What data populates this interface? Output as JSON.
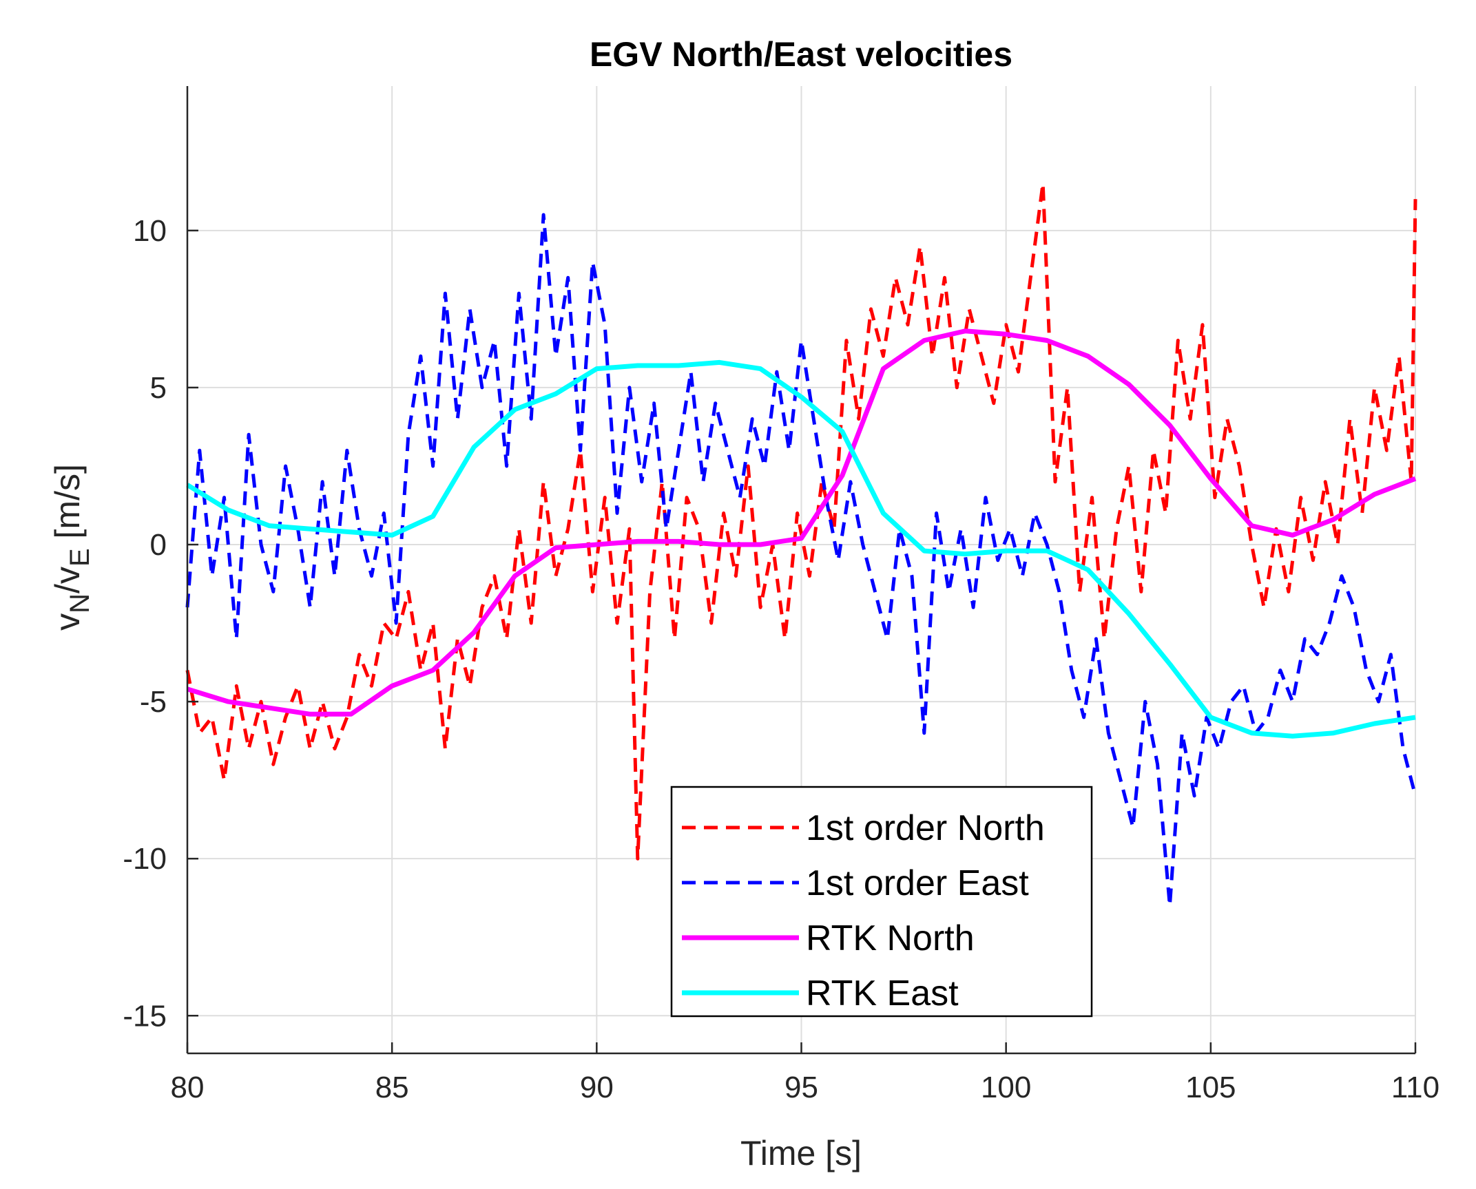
{
  "chart_data": {
    "type": "line",
    "title": "EGV North/East velocities",
    "xlabel": "Time [s]",
    "ylabel_parts": {
      "v": "v",
      "n_sub": "N",
      "slash": "/",
      "e_sub": "E",
      "unit": " [m/s]"
    },
    "xlim": [
      80,
      110
    ],
    "ylim": [
      -16.2,
      14.6
    ],
    "x_ticks": [
      80,
      85,
      90,
      95,
      100,
      105,
      110
    ],
    "x_tick_labels": [
      "80",
      "85",
      "90",
      "95",
      "100",
      "105",
      "110"
    ],
    "y_ticks": [
      -15,
      -10,
      -5,
      0,
      5,
      10
    ],
    "y_tick_labels": [
      "-15",
      "-10",
      "-5",
      "0",
      "5",
      "10"
    ],
    "grid": true,
    "legend_position": "bottom-center",
    "series": [
      {
        "name": "1st order North",
        "color": "#ff0000",
        "style": "dashed",
        "x": [
          80.0,
          80.3,
          80.6,
          80.9,
          81.2,
          81.5,
          81.8,
          82.1,
          82.4,
          82.7,
          83.0,
          83.3,
          83.6,
          83.9,
          84.2,
          84.5,
          84.8,
          85.1,
          85.4,
          85.7,
          86.0,
          86.3,
          86.6,
          86.9,
          87.2,
          87.5,
          87.8,
          88.1,
          88.4,
          88.7,
          89.0,
          89.3,
          89.6,
          89.9,
          90.2,
          90.5,
          90.8,
          91.0,
          91.3,
          91.6,
          91.9,
          92.2,
          92.5,
          92.8,
          93.1,
          93.4,
          93.7,
          94.0,
          94.3,
          94.6,
          94.9,
          95.2,
          95.5,
          95.8,
          96.1,
          96.4,
          96.7,
          97.0,
          97.3,
          97.6,
          97.9,
          98.2,
          98.5,
          98.8,
          99.1,
          99.4,
          99.7,
          100.0,
          100.3,
          100.6,
          100.9,
          101.2,
          101.5,
          101.8,
          102.1,
          102.4,
          102.7,
          103.0,
          103.3,
          103.6,
          103.9,
          104.2,
          104.5,
          104.8,
          105.1,
          105.4,
          105.7,
          106.0,
          106.3,
          106.6,
          106.9,
          107.2,
          107.5,
          107.8,
          108.1,
          108.4,
          108.7,
          109.0,
          109.3,
          109.6,
          109.9,
          110.0
        ],
        "values": [
          -4,
          -6,
          -5.5,
          -7.5,
          -4.5,
          -6.5,
          -5,
          -7,
          -5.5,
          -4.5,
          -6.5,
          -5,
          -6.5,
          -5.5,
          -3.5,
          -4.5,
          -2.5,
          -3,
          -1.5,
          -4,
          -2.5,
          -6.5,
          -3,
          -4.5,
          -2,
          -1,
          -3,
          0.5,
          -2.5,
          2,
          -1,
          0.5,
          3,
          -1.5,
          1.5,
          -2.5,
          0.5,
          -10,
          -1.5,
          2,
          -3,
          1.5,
          0.5,
          -2.5,
          1,
          -1,
          2.5,
          -2,
          0,
          -3,
          1,
          -1,
          2,
          0.5,
          6.5,
          4,
          7.5,
          6,
          8.5,
          7,
          9.5,
          6,
          8.5,
          5,
          7.5,
          6,
          4.5,
          7,
          5.5,
          8.5,
          11.5,
          2,
          5,
          -1.5,
          1.5,
          -3,
          0.5,
          2.5,
          -1.5,
          3,
          1,
          6.5,
          4,
          7,
          1.5,
          4,
          2.5,
          0,
          -2,
          0.5,
          -1.5,
          1.5,
          -0.5,
          2,
          0,
          4,
          1,
          5,
          3,
          6,
          2,
          11
        ]
      },
      {
        "name": "1st order East",
        "color": "#0000ff",
        "style": "dashed",
        "x": [
          80.0,
          80.3,
          80.6,
          80.9,
          81.2,
          81.5,
          81.8,
          82.1,
          82.4,
          82.7,
          83.0,
          83.3,
          83.6,
          83.9,
          84.2,
          84.5,
          84.8,
          85.1,
          85.4,
          85.7,
          86.0,
          86.3,
          86.6,
          86.9,
          87.2,
          87.5,
          87.8,
          88.1,
          88.4,
          88.7,
          89.0,
          89.3,
          89.6,
          89.9,
          90.2,
          90.5,
          90.8,
          91.1,
          91.4,
          91.7,
          92.0,
          92.3,
          92.6,
          92.9,
          93.2,
          93.5,
          93.8,
          94.1,
          94.4,
          94.7,
          95.0,
          95.3,
          95.6,
          95.9,
          96.2,
          96.5,
          96.8,
          97.1,
          97.4,
          97.7,
          98.0,
          98.3,
          98.6,
          98.9,
          99.2,
          99.5,
          99.8,
          100.1,
          100.4,
          100.7,
          101.0,
          101.3,
          101.6,
          101.9,
          102.2,
          102.5,
          102.8,
          103.1,
          103.4,
          103.7,
          104.0,
          104.3,
          104.6,
          104.9,
          105.2,
          105.5,
          105.8,
          106.1,
          106.4,
          106.7,
          107.0,
          107.3,
          107.6,
          107.9,
          108.2,
          108.5,
          108.8,
          109.1,
          109.4,
          109.7,
          110.0
        ],
        "values": [
          -2,
          3,
          -1,
          1.5,
          -3,
          3.5,
          0,
          -1.5,
          2.5,
          0.5,
          -2,
          2,
          -1,
          3,
          0.5,
          -1,
          1,
          -2.5,
          3.5,
          6,
          2.5,
          8,
          4,
          7.5,
          5,
          6.5,
          2.5,
          8,
          4,
          10.5,
          6,
          8.5,
          3,
          9,
          7,
          1,
          5,
          2,
          4.5,
          0.5,
          3,
          5.5,
          2,
          4.5,
          3,
          1.5,
          4,
          2.5,
          5.5,
          3,
          6.5,
          4,
          1.5,
          -0.5,
          2,
          0,
          -1.5,
          -3,
          0.5,
          -1,
          -6,
          1,
          -1.5,
          0.5,
          -2,
          1.5,
          -0.5,
          0.5,
          -1,
          1,
          0,
          -1.5,
          -4,
          -5.5,
          -3,
          -6,
          -7.5,
          -9,
          -5,
          -7,
          -11.5,
          -6,
          -8,
          -5.5,
          -6.5,
          -5,
          -4.5,
          -6,
          -5.5,
          -4,
          -5,
          -3,
          -3.5,
          -2.5,
          -1,
          -2,
          -4,
          -5,
          -3.5,
          -6.5,
          -8
        ]
      },
      {
        "name": "RTK North",
        "color": "#ff00ff",
        "style": "solid",
        "x": [
          80,
          81,
          82,
          83,
          84,
          85,
          86,
          87,
          88,
          89,
          90,
          91,
          92,
          93,
          94,
          95,
          96,
          97,
          98,
          99,
          100,
          101,
          102,
          103,
          104,
          105,
          106,
          107,
          108,
          109,
          110
        ],
        "values": [
          -4.6,
          -5,
          -5.2,
          -5.4,
          -5.4,
          -4.5,
          -4.0,
          -2.8,
          -1.0,
          -0.1,
          0.0,
          0.1,
          0.1,
          0.0,
          0.0,
          0.2,
          2.2,
          5.6,
          6.5,
          6.8,
          6.7,
          6.5,
          6.0,
          5.1,
          3.8,
          2.1,
          0.6,
          0.3,
          0.8,
          1.6,
          2.1
        ]
      },
      {
        "name": "RTK East",
        "color": "#00ffff",
        "style": "solid",
        "x": [
          80,
          81,
          82,
          83,
          84,
          85,
          86,
          87,
          88,
          89,
          90,
          91,
          92,
          93,
          94,
          95,
          96,
          97,
          98,
          99,
          100,
          101,
          102,
          103,
          104,
          105,
          106,
          107,
          108,
          109,
          110
        ],
        "values": [
          1.9,
          1.1,
          0.6,
          0.5,
          0.4,
          0.3,
          0.9,
          3.1,
          4.3,
          4.8,
          5.6,
          5.7,
          5.7,
          5.8,
          5.6,
          4.7,
          3.6,
          1.0,
          -0.2,
          -0.3,
          -0.2,
          -0.2,
          -0.8,
          -2.2,
          -3.8,
          -5.5,
          -6.0,
          -6.1,
          -6.0,
          -5.7,
          -5.5
        ]
      }
    ]
  }
}
